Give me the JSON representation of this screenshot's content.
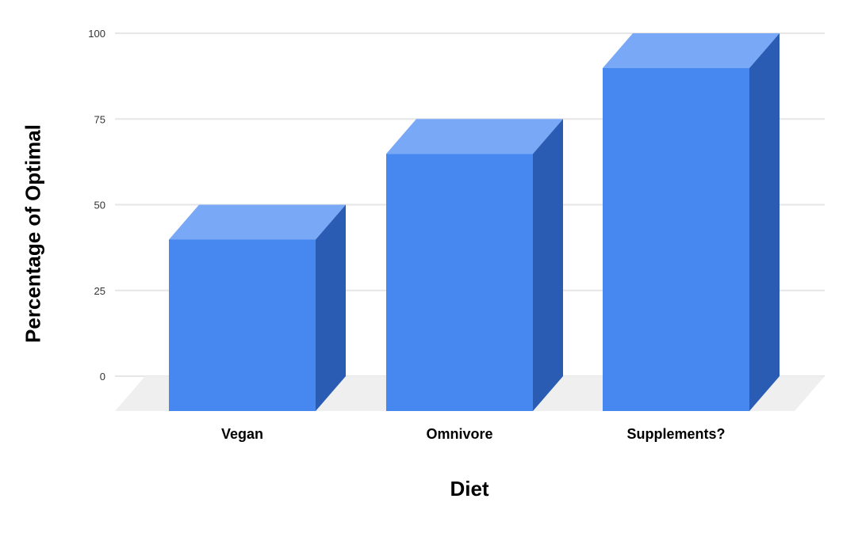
{
  "chart_data": {
    "type": "bar",
    "style": "3d-column",
    "xlabel": "Diet",
    "ylabel": "Percentage of Optimal",
    "categories": [
      "Vegan",
      "Omnivore",
      "Supplements?"
    ],
    "values": [
      50,
      75,
      100
    ],
    "ylim": [
      0,
      100
    ],
    "yticks": [
      0,
      25,
      50,
      75,
      100
    ],
    "grid": true,
    "legend": "none",
    "colors": {
      "bar_front": "#4687f0",
      "bar_top": "#78a8f6",
      "bar_side": "#2b5cb4",
      "gridline": "#e6e6e6",
      "floor": "#efefef",
      "background": "#ffffff",
      "tick_label": "#333333",
      "category_label": "#000000",
      "axis_title": "#000000"
    }
  }
}
